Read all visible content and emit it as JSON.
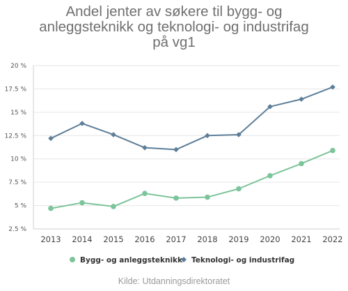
{
  "chart_data": {
    "type": "line",
    "title_lines": [
      "Andel jenter av søkere til bygg- og",
      "anleggsteknikk og teknologi- og industrifag",
      "på vg1"
    ],
    "categories": [
      "2013",
      "2014",
      "2015",
      "2016",
      "2017",
      "2018",
      "2019",
      "2020",
      "2021",
      "2022"
    ],
    "y_ticks": [
      "2.5 %",
      "5 %",
      "7.5 %",
      "10 %",
      "12.5 %",
      "15 %",
      "17.5 %",
      "20 %"
    ],
    "y_tick_values": [
      2.5,
      5,
      7.5,
      10,
      12.5,
      15,
      17.5,
      20
    ],
    "ylim": [
      2.5,
      20
    ],
    "grid": true,
    "legend_position": "bottom",
    "series": [
      {
        "name": "Bygg- og anleggsteknikk",
        "color": "#7cc49a",
        "marker": "circle",
        "values": [
          4.7,
          5.3,
          4.9,
          6.3,
          5.8,
          5.9,
          6.8,
          8.2,
          9.5,
          10.9
        ]
      },
      {
        "name": "Teknologi- og industrifag",
        "color": "#5c7e99",
        "marker": "diamond",
        "values": [
          12.2,
          13.8,
          12.6,
          11.2,
          11.0,
          12.5,
          12.6,
          15.6,
          16.4,
          17.7
        ]
      }
    ]
  },
  "source": "Kilde: Utdanningsdirektoratet"
}
